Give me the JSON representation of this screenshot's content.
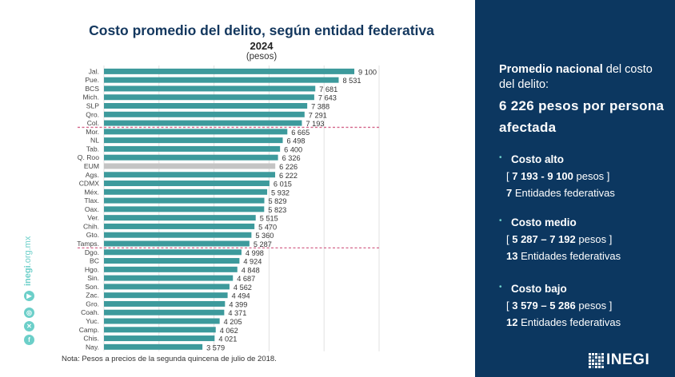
{
  "chart_data": {
    "type": "bar",
    "orientation": "horizontal",
    "title": "Costo promedio del delito, según entidad federativa",
    "subtitle": "2024",
    "units": "(pesos)",
    "xlabel": "",
    "ylabel": "",
    "xlim": [
      0,
      10000
    ],
    "grid": true,
    "gridline_step": 2000,
    "categories": [
      "Jal.",
      "Pue.",
      "BCS",
      "Mich.",
      "SLP",
      "Qro.",
      "Col.",
      "Mor.",
      "NL",
      "Tab.",
      "Q. Roo",
      "EUM",
      "Ags.",
      "CDMX",
      "Méx.",
      "Tlax.",
      "Oax.",
      "Ver.",
      "Chih.",
      "Gto.",
      "Tamps.",
      "Dgo.",
      "BC",
      "Hgo.",
      "Sin.",
      "Son.",
      "Zac.",
      "Gro.",
      "Coah.",
      "Yuc.",
      "Camp.",
      "Chis.",
      "Nay."
    ],
    "values": [
      9100,
      8531,
      7681,
      7643,
      7388,
      7291,
      7193,
      6665,
      6498,
      6400,
      6326,
      6226,
      6222,
      6015,
      5932,
      5829,
      5823,
      5515,
      5470,
      5360,
      5287,
      4998,
      4924,
      4848,
      4687,
      4562,
      4494,
      4399,
      4371,
      4205,
      4062,
      4021,
      3579
    ],
    "value_labels": [
      "9 100",
      "8 531",
      "7 681",
      "7 643",
      "7 388",
      "7 291",
      "7 193",
      "6 665",
      "6 498",
      "6 400",
      "6 326",
      "6 226",
      "6 222",
      "6 015",
      "5 932",
      "5 829",
      "5 823",
      "5 515",
      "5 470",
      "5 360",
      "5 287",
      "4 998",
      "4 924",
      "4 848",
      "4 687",
      "4 562",
      "4 494",
      "4 399",
      "4 371",
      "4 205",
      "4 062",
      "4 021",
      "3 579"
    ],
    "highlight_category": "EUM",
    "separators_after": [
      "Col.",
      "Tamps."
    ],
    "colors": {
      "bar": "#3d9a9c",
      "highlight": "#c4c4c4",
      "separator": "#d4668a",
      "grid": "#e0e0e0"
    }
  },
  "note": "Nota: Pesos a precios de la segunda quincena de julio de 2018.",
  "sidebar_left": {
    "site_bold": "inegi",
    "site_rest": ".org.mx",
    "icons": [
      "youtube-icon",
      "instagram-icon",
      "x-icon",
      "facebook-icon"
    ]
  },
  "panel": {
    "lead_bold": "Promedio nacional",
    "lead_rest": " del costo del delito:",
    "big": "6 226 pesos por persona afectada",
    "categories": [
      {
        "name": "Costo alto",
        "range_bold": "7 193 - 9 100",
        "range_unit": "pesos",
        "count": "7",
        "count_label": "Entidades federativas"
      },
      {
        "name": "Costo medio",
        "range_bold": "5 287 – 7 192",
        "range_unit": "pesos",
        "count": "13",
        "count_label": "Entidades federativas"
      },
      {
        "name": "Costo bajo",
        "range_bold": "3 579 – 5 286",
        "range_unit": "pesos",
        "count": "12",
        "count_label": "Entidades federativas"
      }
    ],
    "logo_text": "INEGI",
    "colors": {
      "background": "#0c3760",
      "accent": "#6ccfc9"
    }
  }
}
